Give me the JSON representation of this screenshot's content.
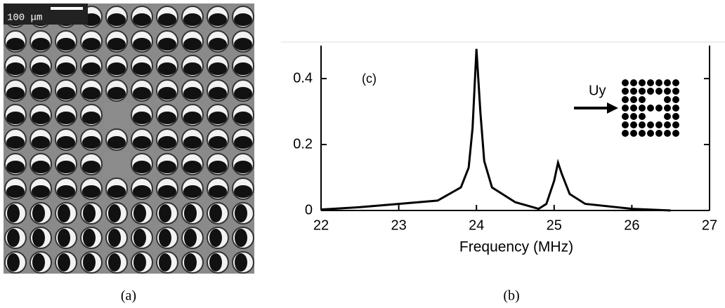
{
  "panel_a": {
    "scale_label": "100 μm",
    "caption": "(a)"
  },
  "chart_data": {
    "type": "line",
    "caption": "(b)",
    "xlabel": "Frequency (MHz)",
    "annotation": "(c)",
    "inset_label": "Uy",
    "x": [
      22,
      22.5,
      23,
      23.5,
      23.8,
      23.9,
      23.95,
      24,
      24.05,
      24.1,
      24.2,
      24.5,
      24.8,
      24.9,
      25,
      25.05,
      25.1,
      25.2,
      25.4,
      26,
      26.5
    ],
    "values": [
      0.003,
      0.01,
      0.02,
      0.03,
      0.07,
      0.13,
      0.25,
      0.49,
      0.3,
      0.15,
      0.07,
      0.025,
      0.005,
      0.02,
      0.09,
      0.145,
      0.11,
      0.05,
      0.02,
      0.005,
      0
    ],
    "color": "#000000",
    "xlim": [
      22,
      27
    ],
    "ylim": [
      0,
      0.5
    ],
    "xticks": [
      22,
      23,
      24,
      25,
      26,
      27
    ],
    "yticks": [
      0,
      0.2,
      0.4
    ]
  }
}
